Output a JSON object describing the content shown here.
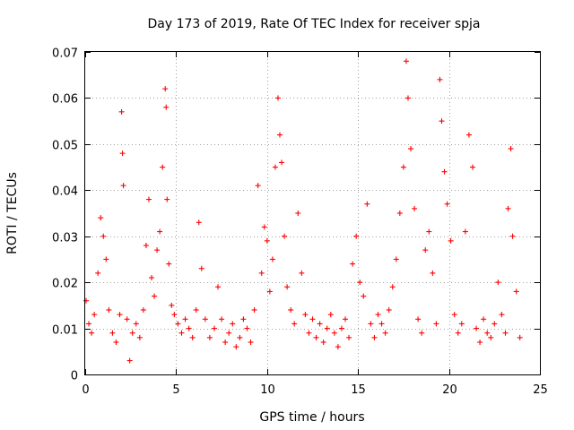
{
  "chart_data": {
    "type": "scatter",
    "title": "Day 173 of 2019, Rate Of TEC Index for receiver spja",
    "xlabel": "GPS time / hours",
    "ylabel": "ROTI / TECUs",
    "xlim": [
      0,
      25
    ],
    "ylim": [
      0,
      0.07
    ],
    "xticks": [
      0,
      5,
      10,
      15,
      20,
      25
    ],
    "xtick_labels": [
      "0",
      "5",
      "10",
      "15",
      "20",
      "25"
    ],
    "yticks": [
      0,
      0.01,
      0.02,
      0.03,
      0.04,
      0.05,
      0.06,
      0.07
    ],
    "ytick_labels": [
      "0",
      "0.01",
      "0.02",
      "0.03",
      "0.04",
      "0.05",
      "0.06",
      "0.07"
    ],
    "grid": true,
    "marker": "+",
    "series": [
      {
        "name": "spja",
        "color": "#ff0000",
        "x": [
          0.05,
          0.2,
          0.35,
          0.5,
          0.7,
          0.85,
          1.0,
          1.15,
          1.3,
          1.5,
          1.7,
          1.9,
          2.0,
          2.05,
          2.1,
          2.3,
          2.45,
          2.6,
          2.8,
          3.0,
          3.2,
          3.35,
          3.5,
          3.65,
          3.8,
          3.95,
          4.1,
          4.25,
          4.4,
          4.45,
          4.5,
          4.6,
          4.75,
          4.9,
          5.1,
          5.3,
          5.5,
          5.7,
          5.9,
          6.1,
          6.25,
          6.4,
          6.6,
          6.85,
          7.1,
          7.3,
          7.5,
          7.7,
          7.9,
          8.1,
          8.3,
          8.5,
          8.7,
          8.9,
          9.1,
          9.3,
          9.5,
          9.7,
          9.85,
          10.0,
          10.15,
          10.3,
          10.45,
          10.6,
          10.7,
          10.8,
          10.95,
          11.1,
          11.3,
          11.5,
          11.7,
          11.9,
          12.1,
          12.3,
          12.5,
          12.7,
          12.9,
          13.1,
          13.3,
          13.5,
          13.7,
          13.9,
          14.1,
          14.3,
          14.5,
          14.7,
          14.9,
          15.1,
          15.3,
          15.5,
          15.7,
          15.9,
          16.1,
          16.3,
          16.5,
          16.7,
          16.9,
          17.1,
          17.3,
          17.5,
          17.65,
          17.75,
          17.9,
          18.1,
          18.3,
          18.5,
          18.7,
          18.9,
          19.1,
          19.3,
          19.5,
          19.6,
          19.75,
          19.9,
          20.1,
          20.3,
          20.5,
          20.7,
          20.9,
          21.1,
          21.3,
          21.5,
          21.7,
          21.9,
          22.1,
          22.3,
          22.5,
          22.7,
          22.9,
          23.1,
          23.25,
          23.4,
          23.5,
          23.7,
          23.9
        ],
        "y": [
          0.016,
          0.011,
          0.009,
          0.013,
          0.022,
          0.034,
          0.03,
          0.025,
          0.014,
          0.009,
          0.007,
          0.013,
          0.057,
          0.048,
          0.041,
          0.012,
          0.003,
          0.009,
          0.011,
          0.008,
          0.014,
          0.028,
          0.038,
          0.021,
          0.017,
          0.027,
          0.031,
          0.045,
          0.062,
          0.058,
          0.038,
          0.024,
          0.015,
          0.013,
          0.011,
          0.009,
          0.012,
          0.01,
          0.008,
          0.014,
          0.033,
          0.023,
          0.012,
          0.008,
          0.01,
          0.019,
          0.012,
          0.007,
          0.009,
          0.011,
          0.006,
          0.008,
          0.012,
          0.01,
          0.007,
          0.014,
          0.041,
          0.022,
          0.032,
          0.029,
          0.018,
          0.025,
          0.045,
          0.06,
          0.052,
          0.046,
          0.03,
          0.019,
          0.014,
          0.011,
          0.035,
          0.022,
          0.013,
          0.009,
          0.012,
          0.008,
          0.011,
          0.007,
          0.01,
          0.013,
          0.009,
          0.006,
          0.01,
          0.012,
          0.008,
          0.024,
          0.03,
          0.02,
          0.017,
          0.037,
          0.011,
          0.008,
          0.013,
          0.011,
          0.009,
          0.014,
          0.019,
          0.025,
          0.035,
          0.045,
          0.068,
          0.06,
          0.049,
          0.036,
          0.012,
          0.009,
          0.027,
          0.031,
          0.022,
          0.011,
          0.064,
          0.055,
          0.044,
          0.037,
          0.029,
          0.013,
          0.009,
          0.011,
          0.031,
          0.052,
          0.045,
          0.01,
          0.007,
          0.012,
          0.009,
          0.008,
          0.011,
          0.02,
          0.013,
          0.009,
          0.036,
          0.049,
          0.03,
          0.018,
          0.008
        ]
      }
    ]
  }
}
